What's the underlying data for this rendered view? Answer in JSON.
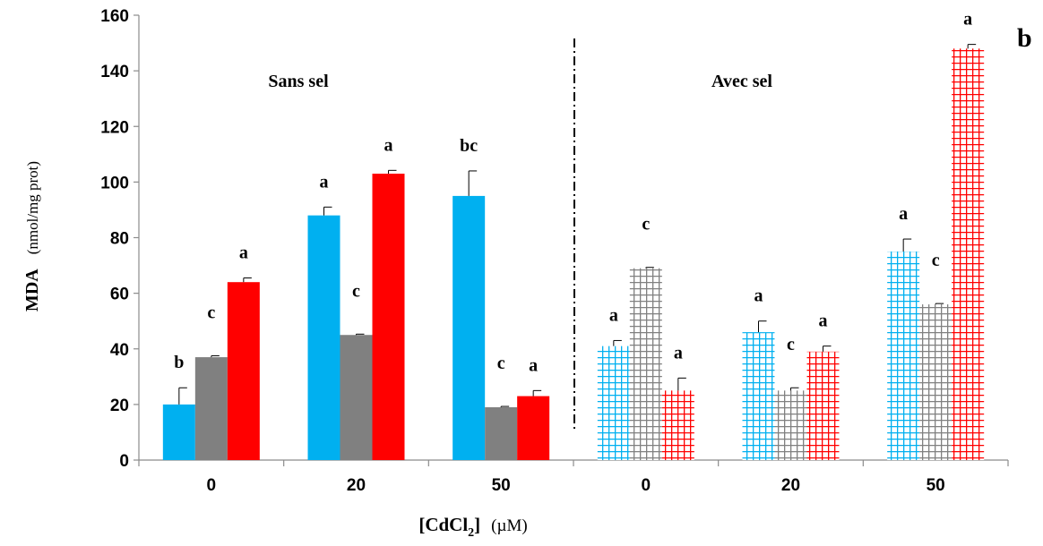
{
  "chart_data": {
    "type": "bar",
    "panel_label": "b",
    "ylabel_main": "MDA",
    "ylabel_unit": "(nmol/mg prot)",
    "xlabel_main": "[CdCl",
    "xlabel_sub": "2",
    "xlabel_close": "]",
    "xlabel_unit": "(µM)",
    "ylim": [
      0,
      160
    ],
    "yticks": [
      "0",
      "20",
      "40",
      "60",
      "80",
      "100",
      "120",
      "140",
      "160"
    ],
    "group_titles": [
      "Sans sel",
      "Avec sel"
    ],
    "categories": [
      "0",
      "20",
      "50",
      "0",
      "20",
      "50"
    ],
    "series_colors": [
      "#00b0f0",
      "#808080",
      "#ff0000"
    ],
    "hatched_from_category": 3,
    "values": [
      [
        20,
        37,
        64
      ],
      [
        88,
        45,
        103
      ],
      [
        95,
        19,
        23
      ],
      [
        41,
        69,
        25
      ],
      [
        46,
        25,
        39
      ],
      [
        75,
        56,
        148
      ]
    ],
    "errors": [
      [
        6,
        0.5,
        1.5
      ],
      [
        3,
        0.3,
        1.2
      ],
      [
        9,
        0.3,
        2
      ],
      [
        2,
        0.3,
        4.5
      ],
      [
        4,
        1,
        2
      ],
      [
        4.5,
        0.3,
        1.5
      ]
    ],
    "letters": [
      [
        "b",
        "c",
        "a"
      ],
      [
        "a",
        "c",
        "a"
      ],
      [
        "bc",
        "c",
        "a"
      ],
      [
        "a",
        "c",
        "a"
      ],
      [
        "a",
        "c",
        "a"
      ],
      [
        "a",
        "c",
        "a"
      ]
    ]
  }
}
